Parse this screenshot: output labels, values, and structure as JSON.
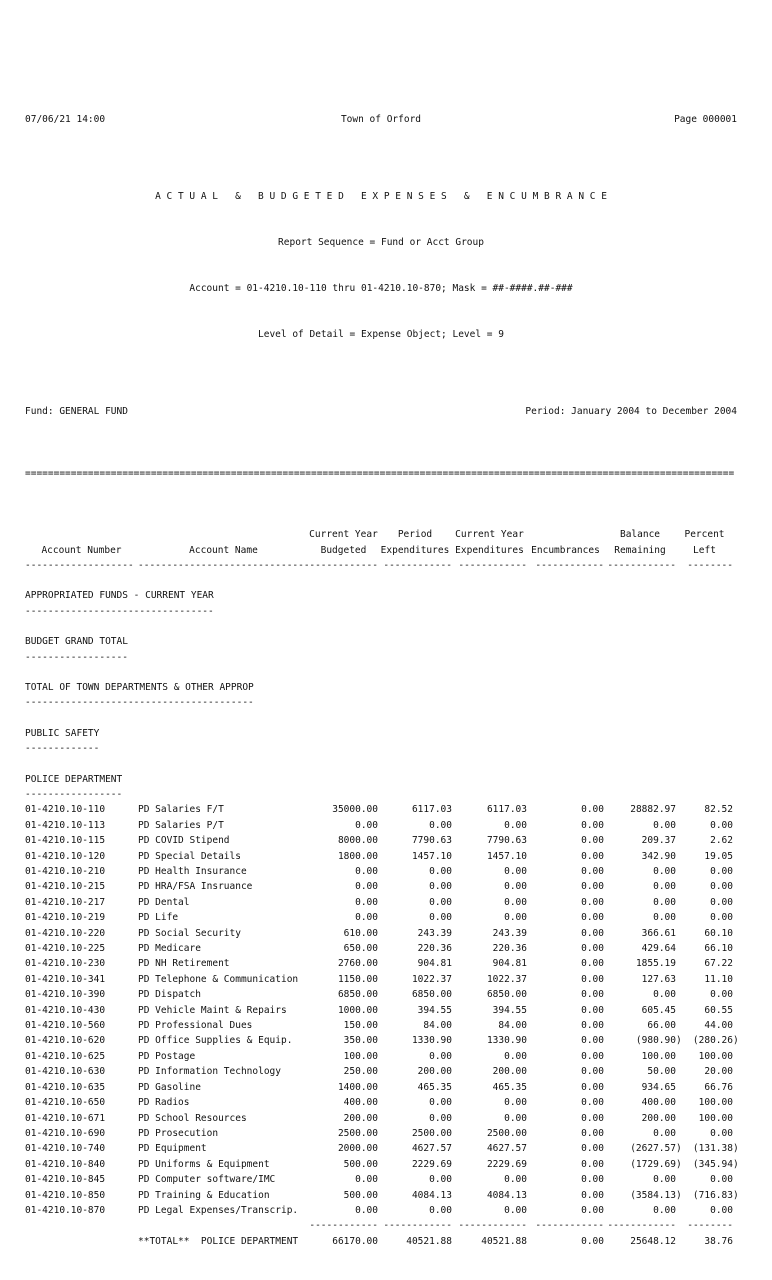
{
  "page_header": {
    "printed_datetime": "07/06/21 14:00",
    "organization": "Town of Orford",
    "page_number": "Page 000001"
  },
  "report_header": {
    "title": "A C T U A L   &   B U D G E T E D   E X P E N S E S   &   E N C U M B R A N C E",
    "sequence": "Report Sequence = Fund or Acct Group",
    "account_range": "Account = 01-4210.10-110 thru 01-4210.10-870; Mask = ##-####.##-###",
    "detail_level": "Level of Detail = Expense Object; Level = 9",
    "fund": "Fund: GENERAL FUND",
    "period": "Period: January 2004 to December 2004"
  },
  "table": {
    "columns": [
      {
        "key": "account-number",
        "header_top": "",
        "header": "Account Number",
        "dashes": 19,
        "num": false
      },
      {
        "key": "account-name",
        "header_top": "",
        "header": "Account Name",
        "dashes": 30,
        "num": false
      },
      {
        "key": "current-year-budgeted",
        "header_top": "Current Year",
        "header": "Budgeted",
        "dashes": 12,
        "num": true
      },
      {
        "key": "period-expenditures",
        "header_top": "Period",
        "header": "Expenditures",
        "dashes": 12,
        "num": true
      },
      {
        "key": "current-year-expenditures",
        "header_top": "Current Year",
        "header": "Expenditures",
        "dashes": 12,
        "num": true
      },
      {
        "key": "encumbrances",
        "header_top": "",
        "header": "Encumbrances",
        "dashes": 12,
        "num": true
      },
      {
        "key": "balance-remaining",
        "header_top": "Balance",
        "header": "Remaining",
        "dashes": 12,
        "num": true
      },
      {
        "key": "percent-left",
        "header_top": "Percent",
        "header": "Left",
        "dashes": 8,
        "num": true
      }
    ],
    "sections": [
      "APPROPRIATED FUNDS - CURRENT YEAR",
      "BUDGET GRAND TOTAL",
      "TOTAL OF TOWN DEPARTMENTS & OTHER APPROP",
      "PUBLIC SAFETY",
      "POLICE DEPARTMENT"
    ],
    "rows": [
      [
        "01-4210.10-110",
        "PD Salaries F/T",
        "35000.00",
        "6117.03",
        "6117.03",
        "0.00",
        "28882.97",
        "82.52"
      ],
      [
        "01-4210.10-113",
        "PD Salaries P/T",
        "0.00",
        "0.00",
        "0.00",
        "0.00",
        "0.00",
        "0.00"
      ],
      [
        "01-4210.10-115",
        "PD COVID Stipend",
        "8000.00",
        "7790.63",
        "7790.63",
        "0.00",
        "209.37",
        "2.62"
      ],
      [
        "01-4210.10-120",
        "PD Special Details",
        "1800.00",
        "1457.10",
        "1457.10",
        "0.00",
        "342.90",
        "19.05"
      ],
      [
        "01-4210.10-210",
        "PD Health Insurance",
        "0.00",
        "0.00",
        "0.00",
        "0.00",
        "0.00",
        "0.00"
      ],
      [
        "01-4210.10-215",
        "PD HRA/FSA Insruance",
        "0.00",
        "0.00",
        "0.00",
        "0.00",
        "0.00",
        "0.00"
      ],
      [
        "01-4210.10-217",
        "PD Dental",
        "0.00",
        "0.00",
        "0.00",
        "0.00",
        "0.00",
        "0.00"
      ],
      [
        "01-4210.10-219",
        "PD Life",
        "0.00",
        "0.00",
        "0.00",
        "0.00",
        "0.00",
        "0.00"
      ],
      [
        "01-4210.10-220",
        "PD Social Security",
        "610.00",
        "243.39",
        "243.39",
        "0.00",
        "366.61",
        "60.10"
      ],
      [
        "01-4210.10-225",
        "PD Medicare",
        "650.00",
        "220.36",
        "220.36",
        "0.00",
        "429.64",
        "66.10"
      ],
      [
        "01-4210.10-230",
        "PD NH Retirement",
        "2760.00",
        "904.81",
        "904.81",
        "0.00",
        "1855.19",
        "67.22"
      ],
      [
        "01-4210.10-341",
        "PD Telephone & Communication",
        "1150.00",
        "1022.37",
        "1022.37",
        "0.00",
        "127.63",
        "11.10"
      ],
      [
        "01-4210.10-390",
        "PD Dispatch",
        "6850.00",
        "6850.00",
        "6850.00",
        "0.00",
        "0.00",
        "0.00"
      ],
      [
        "01-4210.10-430",
        "PD Vehicle Maint & Repairs",
        "1000.00",
        "394.55",
        "394.55",
        "0.00",
        "605.45",
        "60.55"
      ],
      [
        "01-4210.10-560",
        "PD Professional Dues",
        "150.00",
        "84.00",
        "84.00",
        "0.00",
        "66.00",
        "44.00"
      ],
      [
        "01-4210.10-620",
        "PD Office Supplies & Equip.",
        "350.00",
        "1330.90",
        "1330.90",
        "0.00",
        "(980.90)",
        "(280.26)"
      ],
      [
        "01-4210.10-625",
        "PD Postage",
        "100.00",
        "0.00",
        "0.00",
        "0.00",
        "100.00",
        "100.00"
      ],
      [
        "01-4210.10-630",
        "PD Information Technology",
        "250.00",
        "200.00",
        "200.00",
        "0.00",
        "50.00",
        "20.00"
      ],
      [
        "01-4210.10-635",
        "PD Gasoline",
        "1400.00",
        "465.35",
        "465.35",
        "0.00",
        "934.65",
        "66.76"
      ],
      [
        "01-4210.10-650",
        "PD Radios",
        "400.00",
        "0.00",
        "0.00",
        "0.00",
        "400.00",
        "100.00"
      ],
      [
        "01-4210.10-671",
        "PD School Resources",
        "200.00",
        "0.00",
        "0.00",
        "0.00",
        "200.00",
        "100.00"
      ],
      [
        "01-4210.10-690",
        "PD Prosecution",
        "2500.00",
        "2500.00",
        "2500.00",
        "0.00",
        "0.00",
        "0.00"
      ],
      [
        "01-4210.10-740",
        "PD Equipment",
        "2000.00",
        "4627.57",
        "4627.57",
        "0.00",
        "(2627.57)",
        "(131.38)"
      ],
      [
        "01-4210.10-840",
        "PD Uniforms & Equipment",
        "500.00",
        "2229.69",
        "2229.69",
        "0.00",
        "(1729.69)",
        "(345.94)"
      ],
      [
        "01-4210.10-845",
        "PD Computer software/IMC",
        "0.00",
        "0.00",
        "0.00",
        "0.00",
        "0.00",
        "0.00"
      ],
      [
        "01-4210.10-850",
        "PD Training & Education",
        "500.00",
        "4084.13",
        "4084.13",
        "0.00",
        "(3584.13)",
        "(716.83)"
      ],
      [
        "01-4210.10-870",
        "PD Legal Expenses/Transcrip.",
        "0.00",
        "0.00",
        "0.00",
        "0.00",
        "0.00",
        "0.00"
      ]
    ],
    "total": {
      "label": "**TOTAL**",
      "name": "POLICE DEPARTMENT",
      "values": [
        "66170.00",
        "40521.88",
        "40521.88",
        "0.00",
        "25648.12",
        "38.76"
      ]
    }
  }
}
